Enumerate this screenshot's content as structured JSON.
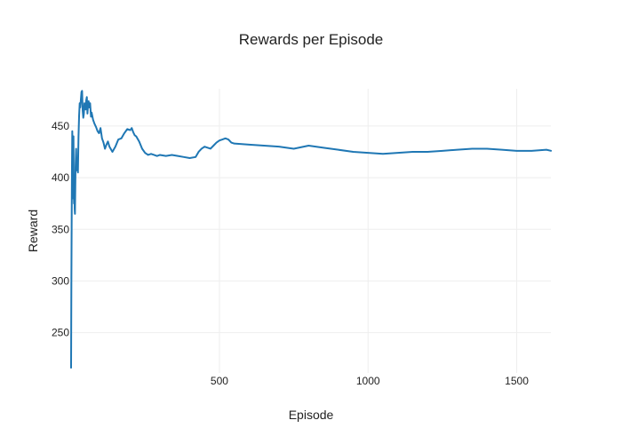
{
  "chart_data": {
    "type": "line",
    "title": "Rewards per Episode",
    "xlabel": "Episode",
    "ylabel": "Reward",
    "xlim": [
      1,
      1615
    ],
    "ylim": [
      211,
      486
    ],
    "xticks": [
      500,
      1000,
      1500
    ],
    "yticks": [
      250,
      300,
      350,
      400,
      450
    ],
    "grid": true,
    "legend": "none",
    "colors": {
      "series": "#1f77b4",
      "grid": "#eeeeee",
      "text": "#222222"
    },
    "series": [
      {
        "x": [
          1,
          2,
          3,
          4,
          5,
          6,
          7,
          8,
          9,
          10,
          11,
          12,
          13,
          14,
          16,
          18,
          20,
          22,
          24,
          26,
          28,
          30,
          32,
          34,
          36,
          38,
          40,
          42,
          44,
          46,
          48,
          50,
          52,
          54,
          56,
          58,
          60,
          62,
          65,
          68,
          70,
          75,
          80,
          85,
          90,
          95,
          100,
          105,
          110,
          115,
          120,
          125,
          130,
          140,
          150,
          160,
          170,
          180,
          190,
          200,
          205,
          210,
          215,
          220,
          230,
          240,
          250,
          260,
          270,
          280,
          290,
          300,
          320,
          340,
          360,
          380,
          400,
          420,
          430,
          440,
          450,
          460,
          470,
          480,
          490,
          500,
          510,
          520,
          530,
          540,
          550,
          600,
          650,
          700,
          750,
          800,
          850,
          900,
          950,
          1000,
          1050,
          1100,
          1150,
          1200,
          1250,
          1300,
          1350,
          1400,
          1450,
          1500,
          1550,
          1600,
          1615
        ],
        "y": [
          216,
          300,
          360,
          410,
          445,
          430,
          380,
          420,
          440,
          385,
          375,
          400,
          370,
          365,
          410,
          428,
          407,
          415,
          405,
          440,
          460,
          472,
          468,
          476,
          483,
          484,
          465,
          458,
          462,
          472,
          469,
          466,
          475,
          478,
          462,
          470,
          474,
          468,
          472,
          459,
          463,
          456,
          452,
          449,
          445,
          443,
          448,
          438,
          434,
          428,
          432,
          435,
          430,
          425,
          430,
          437,
          438,
          443,
          447,
          446,
          448,
          444,
          441,
          440,
          435,
          428,
          424,
          422,
          423,
          422,
          421,
          422,
          421,
          422,
          421,
          420,
          419,
          420,
          425,
          428,
          430,
          429,
          428,
          431,
          434,
          436,
          437,
          438,
          437,
          434,
          433,
          432,
          431,
          430,
          428,
          431,
          429,
          427,
          425,
          424,
          423,
          424,
          425,
          425,
          426,
          427,
          428,
          428,
          427,
          426,
          426,
          427,
          426
        ]
      }
    ]
  }
}
